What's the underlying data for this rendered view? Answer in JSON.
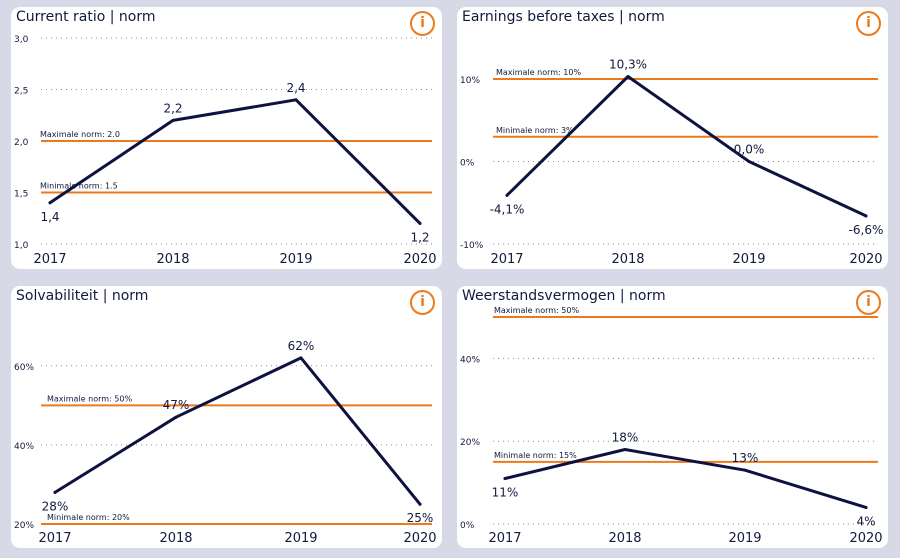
{
  "chart_data": [
    {
      "type": "line",
      "title": "Current ratio | norm",
      "categories": [
        "2017",
        "2018",
        "2019",
        "2020"
      ],
      "values": [
        1.4,
        2.2,
        2.4,
        1.2
      ],
      "value_labels": [
        "1,4",
        "2,2",
        "2,4",
        "1,2"
      ],
      "ylim": [
        1.0,
        3.0
      ],
      "yticks": [
        1.0,
        1.5,
        2.0,
        2.5,
        3.0
      ],
      "ytick_labels": [
        "1,0",
        "1,5",
        "2,0",
        "2,5",
        "3,0"
      ],
      "norms": [
        {
          "label": "Maximale norm: 2.0",
          "value": 2.0
        },
        {
          "label": "Minimale norm: 1.5",
          "value": 1.5
        }
      ],
      "label_sides": [
        "below",
        "above",
        "above",
        "below"
      ]
    },
    {
      "type": "line",
      "title": "Earnings before taxes | norm",
      "categories": [
        "2017",
        "2018",
        "2019",
        "2020"
      ],
      "values": [
        -4.1,
        10.3,
        0.0,
        -6.6
      ],
      "value_labels": [
        "-4,1%",
        "10,3%",
        "0,0%",
        "-6,6%"
      ],
      "ylim": [
        -10,
        10
      ],
      "yticks": [
        -10,
        0,
        10
      ],
      "ytick_labels": [
        "-10%",
        "0%",
        "10%"
      ],
      "norms": [
        {
          "label": "Maximale norm: 10%",
          "value": 10
        },
        {
          "label": "Minimale norm: 3%",
          "value": 3
        }
      ],
      "label_sides": [
        "below",
        "above",
        "above",
        "below"
      ]
    },
    {
      "type": "line",
      "title": "Solvabiliteit | norm",
      "categories": [
        "2017",
        "2018",
        "2019",
        "2020"
      ],
      "values": [
        28,
        47,
        62,
        25
      ],
      "value_labels": [
        "28%",
        "47%",
        "62%",
        "25%"
      ],
      "ylim": [
        20,
        65
      ],
      "yticks": [
        20,
        40,
        60
      ],
      "ytick_labels": [
        "20%",
        "40%",
        "60%"
      ],
      "norms": [
        {
          "label": "Maximale norm: 50%",
          "value": 50
        },
        {
          "label": "Minimale norm: 20%",
          "value": 20
        }
      ],
      "label_sides": [
        "below",
        "above",
        "above",
        "below"
      ]
    },
    {
      "type": "line",
      "title": "Weerstandsvermogen | norm",
      "categories": [
        "2017",
        "2018",
        "2019",
        "2020"
      ],
      "values": [
        11,
        18,
        13,
        4
      ],
      "value_labels": [
        "11%",
        "18%",
        "13%",
        "4%"
      ],
      "ylim": [
        0,
        50
      ],
      "yticks": [
        0,
        20,
        40
      ],
      "ytick_labels": [
        "0%",
        "20%",
        "40%"
      ],
      "norms": [
        {
          "label": "Maximale norm: 50%",
          "value": 50
        },
        {
          "label": "Minimale norm: 15%",
          "value": 15
        }
      ],
      "label_sides": [
        "below",
        "above",
        "above",
        "below"
      ]
    }
  ],
  "colors": {
    "line": "#0e1240",
    "norm": "#ec7a1c",
    "grid": "#8a8fa3",
    "text": "#111a3d",
    "info_icon": "#ec7a1c"
  },
  "info_icon": "info-icon"
}
